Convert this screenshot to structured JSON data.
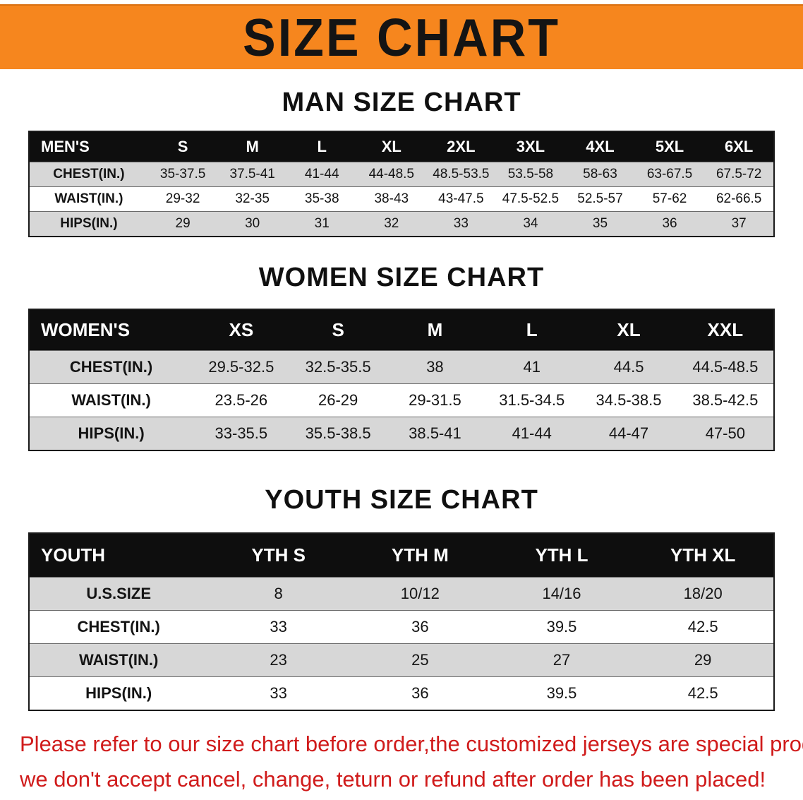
{
  "banner": {
    "title": "SIZE CHART"
  },
  "colors": {
    "banner_bg": "#f6861e",
    "table_header_bg": "#0e0e0e",
    "row_alt_bg": "#d7d7d7",
    "disclaimer_text": "#d01b1b"
  },
  "sections": [
    {
      "heading": "MAN SIZE CHART",
      "table": {
        "header": [
          "MEN'S",
          "S",
          "M",
          "L",
          "XL",
          "2XL",
          "3XL",
          "4XL",
          "5XL",
          "6XL"
        ],
        "rows": [
          [
            "CHEST(IN.)",
            "35-37.5",
            "37.5-41",
            "41-44",
            "44-48.5",
            "48.5-53.5",
            "53.5-58",
            "58-63",
            "63-67.5",
            "67.5-72"
          ],
          [
            "WAIST(IN.)",
            "29-32",
            "32-35",
            "35-38",
            "38-43",
            "43-47.5",
            "47.5-52.5",
            "52.5-57",
            "57-62",
            "62-66.5"
          ],
          [
            "HIPS(IN.)",
            "29",
            "30",
            "31",
            "32",
            "33",
            "34",
            "35",
            "36",
            "37"
          ]
        ]
      }
    },
    {
      "heading": "WOMEN SIZE CHART",
      "table": {
        "header": [
          "WOMEN'S",
          "XS",
          "S",
          "M",
          "L",
          "XL",
          "XXL"
        ],
        "rows": [
          [
            "CHEST(IN.)",
            "29.5-32.5",
            "32.5-35.5",
            "38",
            "41",
            "44.5",
            "44.5-48.5"
          ],
          [
            "WAIST(IN.)",
            "23.5-26",
            "26-29",
            "29-31.5",
            "31.5-34.5",
            "34.5-38.5",
            "38.5-42.5"
          ],
          [
            "HIPS(IN.)",
            "33-35.5",
            "35.5-38.5",
            "38.5-41",
            "41-44",
            "44-47",
            "47-50"
          ]
        ]
      }
    },
    {
      "heading": "YOUTH SIZE CHART",
      "table": {
        "header": [
          "YOUTH",
          "YTH S",
          "YTH M",
          "YTH L",
          "YTH XL"
        ],
        "rows": [
          [
            "U.S.SIZE",
            "8",
            "10/12",
            "14/16",
            "18/20"
          ],
          [
            "CHEST(IN.)",
            "33",
            "36",
            "39.5",
            "42.5"
          ],
          [
            "WAIST(IN.)",
            "23",
            "25",
            "27",
            "29"
          ],
          [
            "HIPS(IN.)",
            "33",
            "36",
            "39.5",
            "42.5"
          ]
        ]
      }
    }
  ],
  "disclaimer": {
    "line1": "Please refer to our size chart before order,the customized jerseys are special products,",
    "line2": "we don't accept cancel, change, teturn or refund after order has been placed!"
  }
}
